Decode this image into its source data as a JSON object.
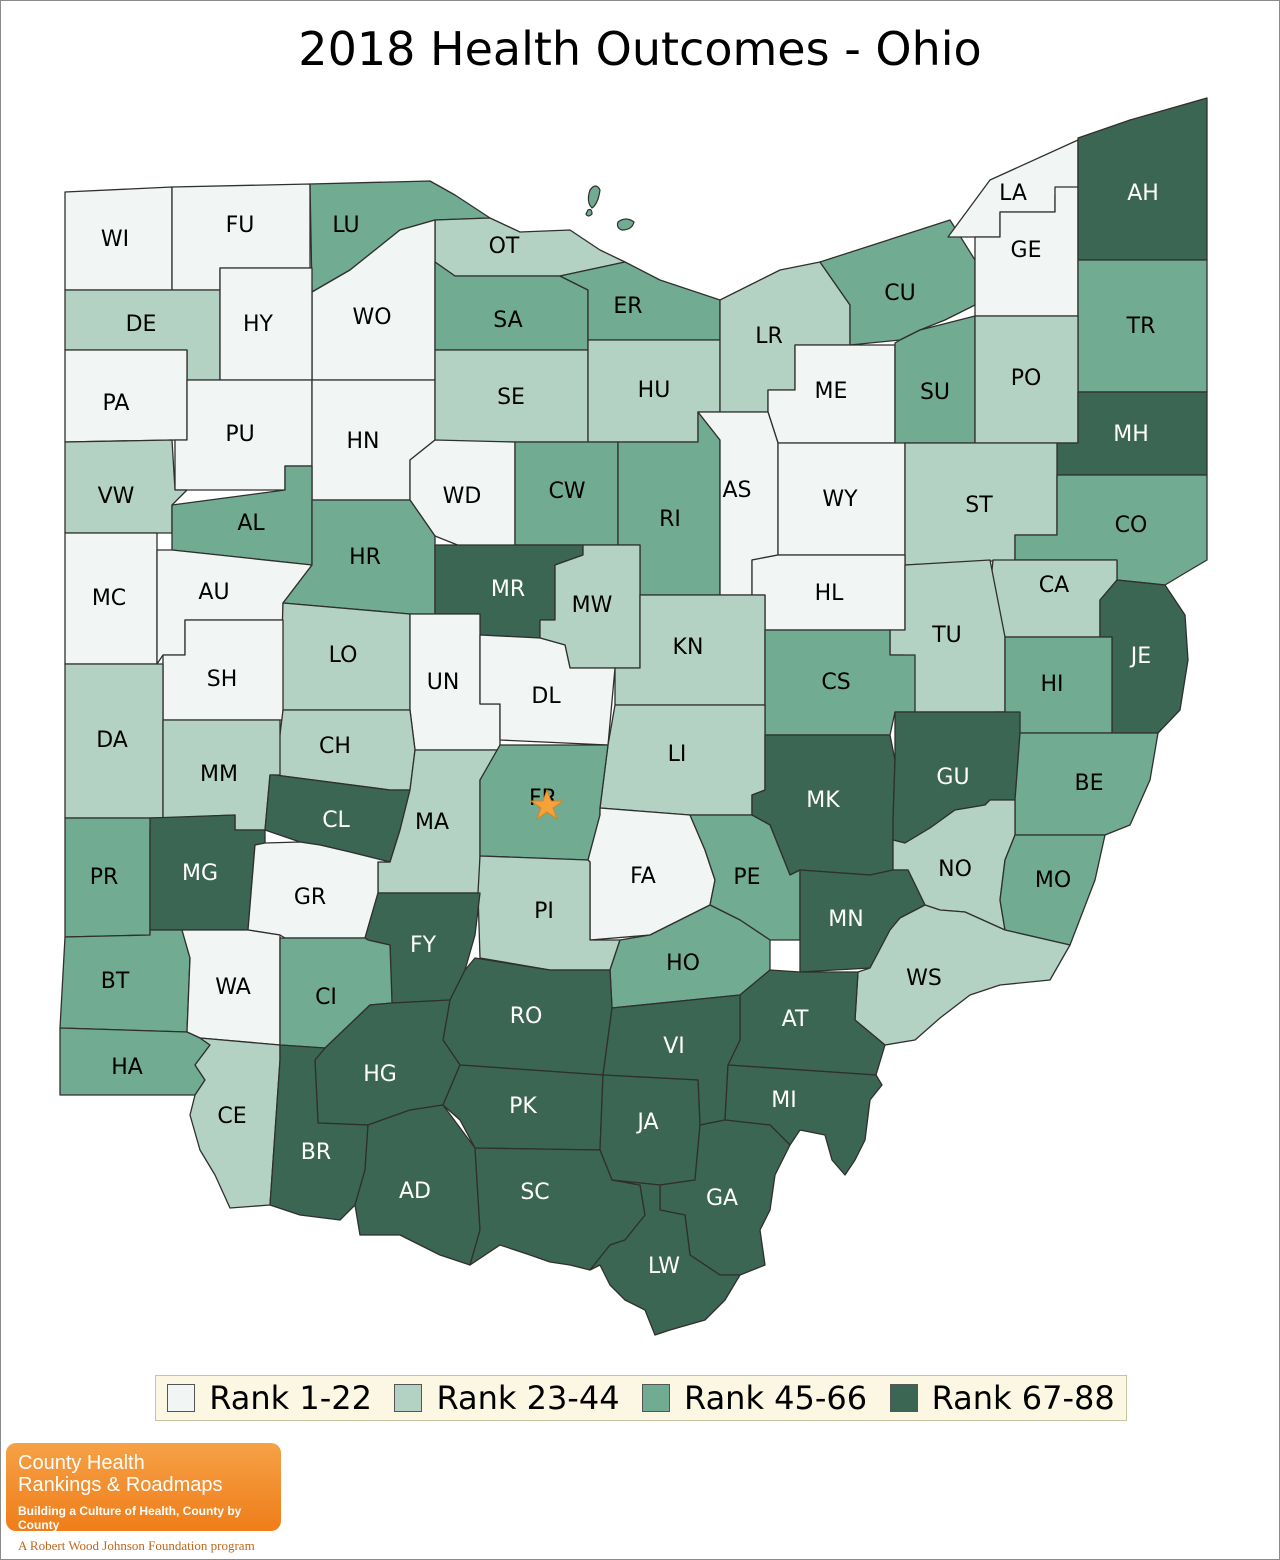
{
  "title": "2018 Health Outcomes - Ohio",
  "colors": {
    "rank_1_22": "#f1f5f3",
    "rank_23_44": "#b3d2c3",
    "rank_45_66": "#71ab91",
    "rank_67_88": "#3c6654",
    "highlight_star": "#f6a13a"
  },
  "legend": [
    {
      "label": "Rank 1-22",
      "color": "#f1f5f3"
    },
    {
      "label": "Rank 23-44",
      "color": "#b3d2c3"
    },
    {
      "label": "Rank 45-66",
      "color": "#71ab91"
    },
    {
      "label": "Rank 67-88",
      "color": "#3c6654"
    }
  ],
  "highlighted_county": "FR",
  "counties": [
    {
      "abbr": "WI",
      "rank_group": "1-22"
    },
    {
      "abbr": "FU",
      "rank_group": "1-22"
    },
    {
      "abbr": "LU",
      "rank_group": "45-66"
    },
    {
      "abbr": "OT",
      "rank_group": "23-44"
    },
    {
      "abbr": "WO",
      "rank_group": "1-22"
    },
    {
      "abbr": "DE",
      "rank_group": "23-44"
    },
    {
      "abbr": "HY",
      "rank_group": "1-22"
    },
    {
      "abbr": "SA",
      "rank_group": "45-66"
    },
    {
      "abbr": "ER",
      "rank_group": "45-66"
    },
    {
      "abbr": "PA",
      "rank_group": "1-22"
    },
    {
      "abbr": "PU",
      "rank_group": "1-22"
    },
    {
      "abbr": "HN",
      "rank_group": "1-22"
    },
    {
      "abbr": "SE",
      "rank_group": "23-44"
    },
    {
      "abbr": "HU",
      "rank_group": "23-44"
    },
    {
      "abbr": "LR",
      "rank_group": "23-44"
    },
    {
      "abbr": "CU",
      "rank_group": "45-66"
    },
    {
      "abbr": "LA",
      "rank_group": "1-22"
    },
    {
      "abbr": "GE",
      "rank_group": "1-22"
    },
    {
      "abbr": "AH",
      "rank_group": "67-88"
    },
    {
      "abbr": "TR",
      "rank_group": "45-66"
    },
    {
      "abbr": "ME",
      "rank_group": "1-22"
    },
    {
      "abbr": "SU",
      "rank_group": "45-66"
    },
    {
      "abbr": "PO",
      "rank_group": "23-44"
    },
    {
      "abbr": "MH",
      "rank_group": "67-88"
    },
    {
      "abbr": "VW",
      "rank_group": "23-44"
    },
    {
      "abbr": "AL",
      "rank_group": "45-66"
    },
    {
      "abbr": "WD",
      "rank_group": "1-22"
    },
    {
      "abbr": "CW",
      "rank_group": "45-66"
    },
    {
      "abbr": "RI",
      "rank_group": "45-66"
    },
    {
      "abbr": "AS",
      "rank_group": "1-22"
    },
    {
      "abbr": "WY",
      "rank_group": "1-22"
    },
    {
      "abbr": "ST",
      "rank_group": "23-44"
    },
    {
      "abbr": "CO",
      "rank_group": "45-66"
    },
    {
      "abbr": "MC",
      "rank_group": "1-22"
    },
    {
      "abbr": "AU",
      "rank_group": "1-22"
    },
    {
      "abbr": "HR",
      "rank_group": "45-66"
    },
    {
      "abbr": "MR",
      "rank_group": "67-88"
    },
    {
      "abbr": "MW",
      "rank_group": "23-44"
    },
    {
      "abbr": "HL",
      "rank_group": "1-22"
    },
    {
      "abbr": "CA",
      "rank_group": "23-44"
    },
    {
      "abbr": "JE",
      "rank_group": "67-88"
    },
    {
      "abbr": "LO",
      "rank_group": "23-44"
    },
    {
      "abbr": "KN",
      "rank_group": "23-44"
    },
    {
      "abbr": "TU",
      "rank_group": "23-44"
    },
    {
      "abbr": "SH",
      "rank_group": "1-22"
    },
    {
      "abbr": "UN",
      "rank_group": "1-22"
    },
    {
      "abbr": "DL",
      "rank_group": "1-22"
    },
    {
      "abbr": "CS",
      "rank_group": "45-66"
    },
    {
      "abbr": "HI",
      "rank_group": "45-66"
    },
    {
      "abbr": "DA",
      "rank_group": "23-44"
    },
    {
      "abbr": "CH",
      "rank_group": "23-44"
    },
    {
      "abbr": "LI",
      "rank_group": "23-44"
    },
    {
      "abbr": "MK",
      "rank_group": "67-88"
    },
    {
      "abbr": "GU",
      "rank_group": "67-88"
    },
    {
      "abbr": "BE",
      "rank_group": "45-66"
    },
    {
      "abbr": "MM",
      "rank_group": "23-44"
    },
    {
      "abbr": "CL",
      "rank_group": "67-88"
    },
    {
      "abbr": "MA",
      "rank_group": "23-44"
    },
    {
      "abbr": "FR",
      "rank_group": "45-66"
    },
    {
      "abbr": "PR",
      "rank_group": "45-66"
    },
    {
      "abbr": "MG",
      "rank_group": "67-88"
    },
    {
      "abbr": "GR",
      "rank_group": "1-22"
    },
    {
      "abbr": "FA",
      "rank_group": "1-22"
    },
    {
      "abbr": "PE",
      "rank_group": "45-66"
    },
    {
      "abbr": "NO",
      "rank_group": "23-44"
    },
    {
      "abbr": "MO",
      "rank_group": "45-66"
    },
    {
      "abbr": "PI",
      "rank_group": "23-44"
    },
    {
      "abbr": "FY",
      "rank_group": "67-88"
    },
    {
      "abbr": "MN",
      "rank_group": "67-88"
    },
    {
      "abbr": "BT",
      "rank_group": "45-66"
    },
    {
      "abbr": "WA",
      "rank_group": "1-22"
    },
    {
      "abbr": "CI",
      "rank_group": "45-66"
    },
    {
      "abbr": "HO",
      "rank_group": "45-66"
    },
    {
      "abbr": "WS",
      "rank_group": "23-44"
    },
    {
      "abbr": "RO",
      "rank_group": "67-88"
    },
    {
      "abbr": "AT",
      "rank_group": "67-88"
    },
    {
      "abbr": "HA",
      "rank_group": "45-66"
    },
    {
      "abbr": "HG",
      "rank_group": "67-88"
    },
    {
      "abbr": "VI",
      "rank_group": "67-88"
    },
    {
      "abbr": "CE",
      "rank_group": "23-44"
    },
    {
      "abbr": "PK",
      "rank_group": "67-88"
    },
    {
      "abbr": "MI",
      "rank_group": "67-88"
    },
    {
      "abbr": "JA",
      "rank_group": "67-88"
    },
    {
      "abbr": "BR",
      "rank_group": "67-88"
    },
    {
      "abbr": "AD",
      "rank_group": "67-88"
    },
    {
      "abbr": "SC",
      "rank_group": "67-88"
    },
    {
      "abbr": "GA",
      "rank_group": "67-88"
    },
    {
      "abbr": "LW",
      "rank_group": "67-88"
    }
  ],
  "logo": {
    "line1": "County Health",
    "line2": "Rankings & Roadmaps",
    "tagline": "Building a Culture of Health, County by County",
    "byline": "A Robert Wood Johnson Foundation program"
  }
}
